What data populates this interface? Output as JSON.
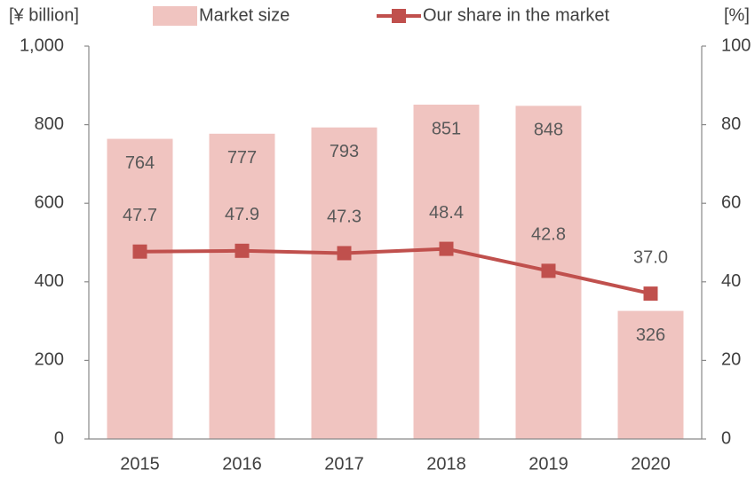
{
  "chart_data": {
    "type": "bar",
    "ylabel": "[¥ billion]",
    "y2label": "[%]",
    "categories": [
      "2015",
      "2016",
      "2017",
      "2018",
      "2019",
      "2020"
    ],
    "series": [
      {
        "name": "Market size",
        "type": "bar",
        "color": "#f0c4c0",
        "values": [
          764,
          777,
          793,
          851,
          848,
          326
        ]
      },
      {
        "name": "Our share in the market",
        "type": "line",
        "axis": "y2",
        "color": "#c0504d",
        "values": [
          47.7,
          47.9,
          47.3,
          48.4,
          42.8,
          37.0
        ],
        "value_labels": [
          "47.7",
          "47.9",
          "47.3",
          "48.4",
          "42.8",
          "37.0"
        ]
      }
    ],
    "ylim": [
      0,
      1000
    ],
    "yticks": [
      0,
      200,
      400,
      600,
      800,
      {
        "value": 1000,
        "label": "1,000"
      }
    ],
    "y2lim": [
      0,
      100
    ],
    "y2ticks": [
      0,
      20,
      40,
      60,
      80,
      100
    ],
    "grid": false,
    "legend": "top"
  }
}
